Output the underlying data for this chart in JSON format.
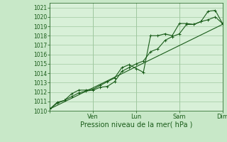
{
  "xlabel": "Pression niveau de la mer( hPa )",
  "background_color": "#c8e8c8",
  "plot_bg_color": "#d8f0d8",
  "grid_color": "#a0c8a0",
  "line_color": "#1a5c1a",
  "xlim": [
    0,
    72
  ],
  "ylim": [
    1010,
    1021.5
  ],
  "yticks": [
    1010,
    1011,
    1012,
    1013,
    1014,
    1015,
    1016,
    1017,
    1018,
    1019,
    1020,
    1021
  ],
  "xtick_positions": [
    0,
    18,
    36,
    54,
    72
  ],
  "xtick_labels": [
    "",
    "Ven",
    "Lun",
    "Sam",
    "Dim"
  ],
  "series1_x": [
    0,
    3,
    6,
    9,
    12,
    15,
    18,
    21,
    24,
    27,
    30,
    33,
    36,
    39,
    42,
    45,
    48,
    51,
    54,
    57,
    60,
    63,
    66,
    69,
    72
  ],
  "series1_y": [
    1010.2,
    1010.8,
    1011.1,
    1011.5,
    1011.9,
    1012.1,
    1012.2,
    1012.5,
    1012.6,
    1013.1,
    1014.2,
    1014.6,
    1015.0,
    1015.3,
    1016.3,
    1016.6,
    1017.5,
    1017.9,
    1018.2,
    1019.2,
    1019.2,
    1019.5,
    1019.7,
    1020.0,
    1019.3
  ],
  "series2_x": [
    0,
    3,
    6,
    9,
    12,
    15,
    18,
    21,
    24,
    27,
    30,
    33,
    36,
    39,
    42,
    45,
    48,
    51,
    54,
    57,
    60,
    63,
    66,
    69,
    72
  ],
  "series2_y": [
    1010.2,
    1010.9,
    1011.1,
    1011.8,
    1012.2,
    1012.2,
    1012.3,
    1012.7,
    1013.1,
    1013.5,
    1014.6,
    1014.9,
    1014.5,
    1014.1,
    1018.0,
    1018.0,
    1018.2,
    1018.0,
    1019.3,
    1019.3,
    1019.2,
    1019.5,
    1020.6,
    1020.7,
    1019.3
  ],
  "series3_x": [
    0,
    72
  ],
  "series3_y": [
    1010.2,
    1019.2
  ],
  "line_width": 0.8,
  "tick_fontsize": 5.5,
  "xlabel_fontsize": 7
}
